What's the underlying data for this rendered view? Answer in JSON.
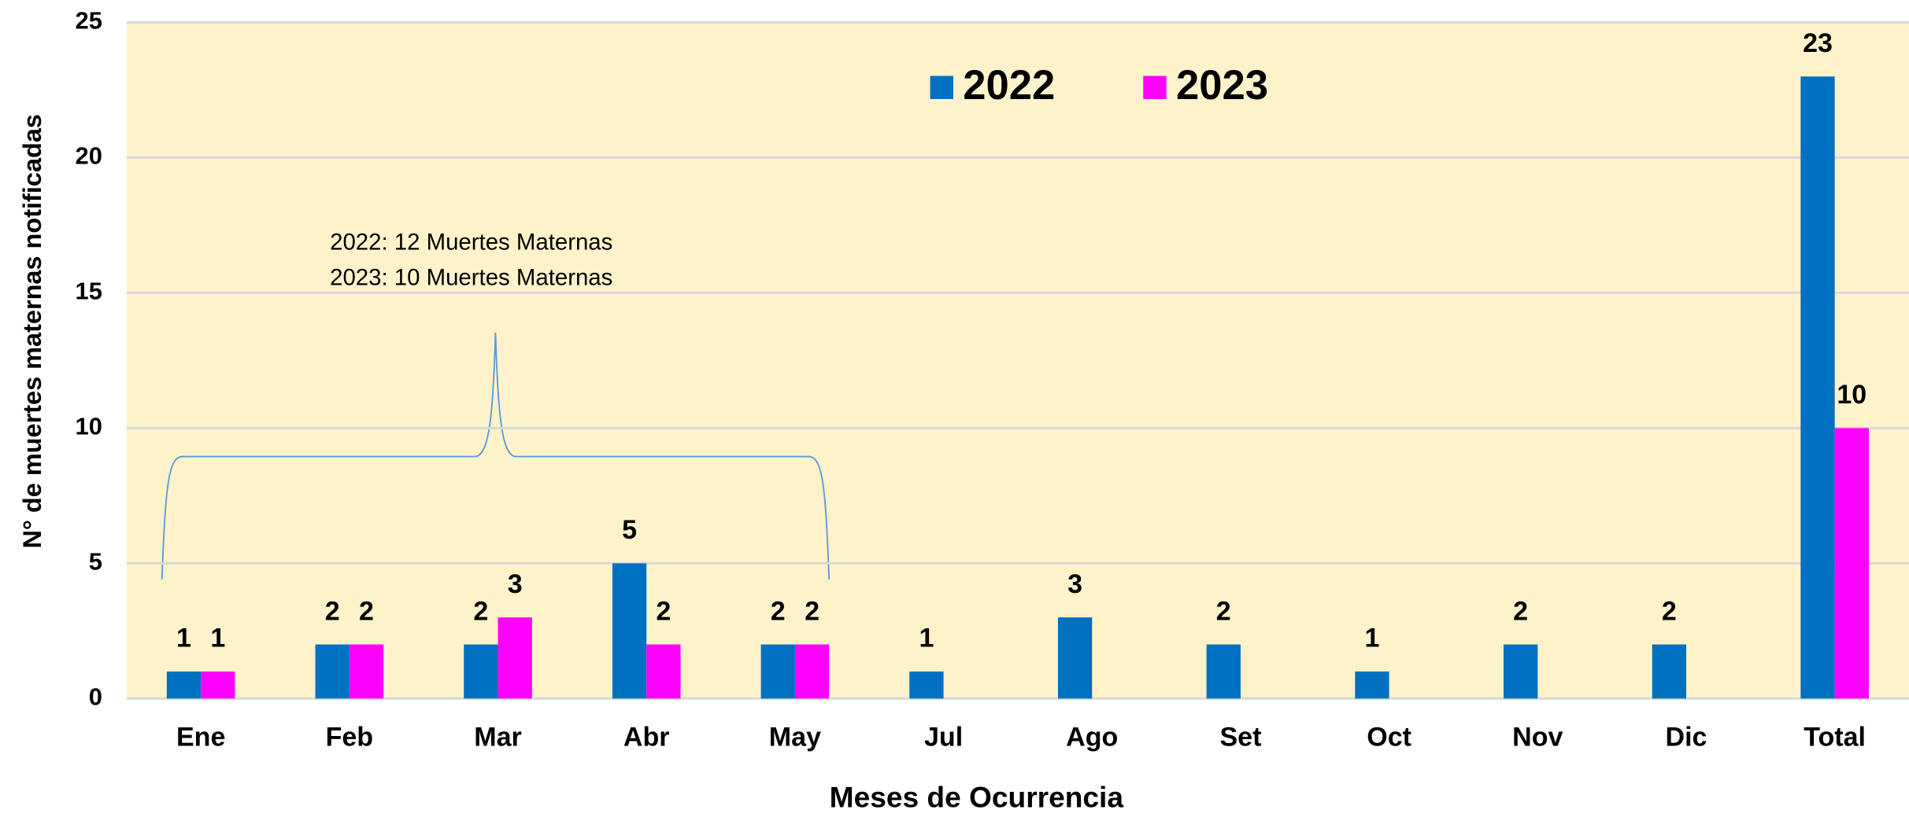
{
  "chart_data": {
    "type": "bar",
    "y_label": "N° de muertes maternas notificadas",
    "x_label": "Meses de Ocurrencia",
    "annotation": [
      "2022: 12 Muertes Maternas",
      "2023: 10 Muertes Maternas"
    ],
    "categories": [
      "Ene",
      "Feb",
      "Mar",
      "Abr",
      "May",
      "Jul",
      "Ago",
      "Set",
      "Oct",
      "Nov",
      "Dic",
      "Total"
    ],
    "series": [
      {
        "name": "2022",
        "color": "#0070c0",
        "values": [
          1,
          2,
          2,
          5,
          2,
          1,
          3,
          2,
          1,
          2,
          2,
          23
        ]
      },
      {
        "name": "2023",
        "color": "#ff00ff",
        "values": [
          1,
          2,
          3,
          2,
          2,
          null,
          null,
          null,
          null,
          null,
          null,
          10
        ]
      }
    ],
    "ylim": [
      0,
      25
    ],
    "yticks": [
      0,
      5,
      10,
      15,
      20,
      25
    ],
    "grid": true,
    "legend": "top"
  }
}
